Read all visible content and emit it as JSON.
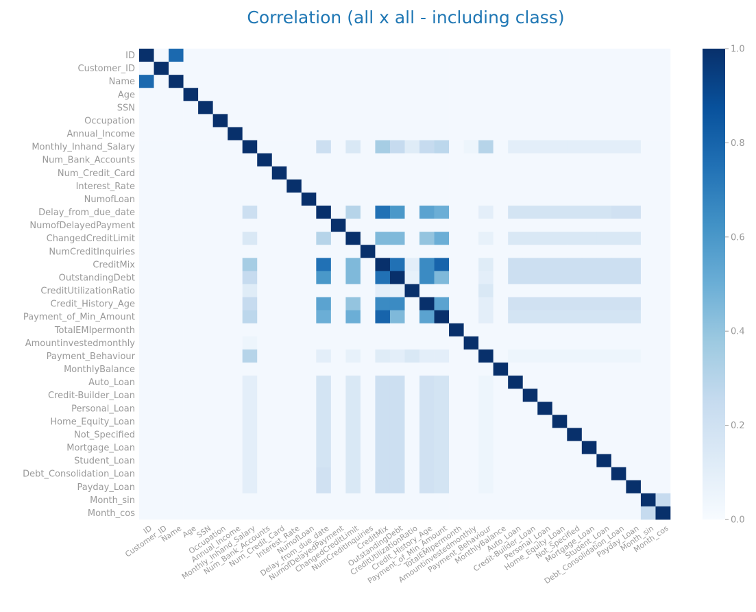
{
  "chart_data": {
    "type": "heatmap",
    "title": "Correlation (all x all - including class)",
    "labels": [
      "ID",
      "Customer_ID",
      "Name",
      "Age",
      "SSN",
      "Occupation",
      "Annual_Income",
      "Monthly_Inhand_Salary",
      "Num_Bank_Accounts",
      "Num_Credit_Card",
      "Interest_Rate",
      "NumofLoan",
      "Delay_from_due_date",
      "NumofDelayedPayment",
      "ChangedCreditLimit",
      "NumCreditInquiries",
      "CreditMix",
      "OutstandingDebt",
      "CreditUtilizationRatio",
      "Credit_History_Age",
      "Payment_of_Min_Amount",
      "TotalEMIpermonth",
      "Amountinvestedmonthly",
      "Payment_Behaviour",
      "MonthlyBalance",
      "Auto_Loan",
      "Credit-Builder_Loan",
      "Personal_Loan",
      "Home_Equity_Loan",
      "Not_Specified",
      "Mortgage_Loan",
      "Student_Loan",
      "Debt_Consolidation_Loan",
      "Payday_Loan",
      "Month_sin",
      "Month_cos"
    ],
    "zlim": [
      0.0,
      1.0
    ],
    "colorbar_ticks": [
      "0.0",
      "0.2",
      "0.4",
      "0.6",
      "0.8",
      "1.0"
    ],
    "colormap": [
      "#f7fbff",
      "#deebf7",
      "#c6dbef",
      "#9ecae1",
      "#6baed6",
      "#4292c6",
      "#2171b5",
      "#08519c",
      "#08306b"
    ],
    "cells": [
      [
        0,
        2,
        0.78
      ],
      [
        4,
        4,
        1
      ],
      [
        7,
        12,
        0.22
      ],
      [
        7,
        14,
        0.15
      ],
      [
        7,
        16,
        0.35
      ],
      [
        7,
        17,
        0.25
      ],
      [
        7,
        18,
        0.12
      ],
      [
        7,
        19,
        0.25
      ],
      [
        7,
        20,
        0.28
      ],
      [
        7,
        22,
        0.05
      ],
      [
        7,
        23,
        0.3
      ],
      [
        7,
        25,
        0.1
      ],
      [
        7,
        26,
        0.1
      ],
      [
        7,
        27,
        0.1
      ],
      [
        7,
        28,
        0.1
      ],
      [
        7,
        29,
        0.1
      ],
      [
        7,
        30,
        0.1
      ],
      [
        7,
        31,
        0.1
      ],
      [
        7,
        32,
        0.1
      ],
      [
        7,
        33,
        0.1
      ],
      [
        12,
        16,
        0.75
      ],
      [
        12,
        17,
        0.6
      ],
      [
        12,
        19,
        0.55
      ],
      [
        12,
        20,
        0.5
      ],
      [
        12,
        14,
        0.3
      ],
      [
        12,
        23,
        0.1
      ],
      [
        12,
        25,
        0.18
      ],
      [
        12,
        26,
        0.18
      ],
      [
        12,
        27,
        0.18
      ],
      [
        12,
        28,
        0.18
      ],
      [
        12,
        29,
        0.18
      ],
      [
        12,
        30,
        0.18
      ],
      [
        12,
        31,
        0.18
      ],
      [
        12,
        32,
        0.2
      ],
      [
        12,
        33,
        0.2
      ],
      [
        14,
        16,
        0.45
      ],
      [
        14,
        17,
        0.45
      ],
      [
        14,
        19,
        0.4
      ],
      [
        14,
        20,
        0.5
      ],
      [
        14,
        23,
        0.08
      ],
      [
        14,
        25,
        0.15
      ],
      [
        14,
        26,
        0.15
      ],
      [
        14,
        27,
        0.15
      ],
      [
        14,
        28,
        0.15
      ],
      [
        14,
        29,
        0.15
      ],
      [
        14,
        30,
        0.15
      ],
      [
        14,
        31,
        0.15
      ],
      [
        14,
        32,
        0.15
      ],
      [
        14,
        33,
        0.15
      ],
      [
        16,
        17,
        0.75
      ],
      [
        16,
        19,
        0.65
      ],
      [
        16,
        20,
        0.8
      ],
      [
        16,
        23,
        0.12
      ],
      [
        16,
        25,
        0.22
      ],
      [
        16,
        26,
        0.22
      ],
      [
        16,
        27,
        0.22
      ],
      [
        16,
        28,
        0.22
      ],
      [
        16,
        29,
        0.22
      ],
      [
        16,
        30,
        0.22
      ],
      [
        16,
        31,
        0.22
      ],
      [
        16,
        32,
        0.22
      ],
      [
        16,
        33,
        0.22
      ],
      [
        17,
        19,
        0.65
      ],
      [
        17,
        20,
        0.45
      ],
      [
        17,
        23,
        0.1
      ],
      [
        17,
        25,
        0.22
      ],
      [
        17,
        26,
        0.22
      ],
      [
        17,
        27,
        0.22
      ],
      [
        17,
        28,
        0.22
      ],
      [
        17,
        29,
        0.22
      ],
      [
        17,
        30,
        0.22
      ],
      [
        17,
        31,
        0.22
      ],
      [
        17,
        32,
        0.22
      ],
      [
        17,
        33,
        0.22
      ],
      [
        18,
        23,
        0.15
      ],
      [
        18,
        16,
        0.1
      ],
      [
        18,
        17,
        0.08
      ],
      [
        19,
        20,
        0.55
      ],
      [
        19,
        23,
        0.1
      ],
      [
        19,
        25,
        0.2
      ],
      [
        19,
        26,
        0.2
      ],
      [
        19,
        27,
        0.2
      ],
      [
        19,
        28,
        0.2
      ],
      [
        19,
        29,
        0.2
      ],
      [
        19,
        30,
        0.2
      ],
      [
        19,
        31,
        0.2
      ],
      [
        19,
        32,
        0.2
      ],
      [
        19,
        33,
        0.2
      ],
      [
        20,
        23,
        0.1
      ],
      [
        20,
        25,
        0.18
      ],
      [
        20,
        26,
        0.18
      ],
      [
        20,
        27,
        0.18
      ],
      [
        20,
        28,
        0.18
      ],
      [
        20,
        29,
        0.18
      ],
      [
        20,
        30,
        0.18
      ],
      [
        20,
        31,
        0.18
      ],
      [
        20,
        32,
        0.18
      ],
      [
        20,
        33,
        0.18
      ],
      [
        23,
        25,
        0.05
      ],
      [
        23,
        26,
        0.05
      ],
      [
        23,
        27,
        0.05
      ],
      [
        23,
        28,
        0.05
      ],
      [
        23,
        29,
        0.05
      ],
      [
        23,
        30,
        0.05
      ],
      [
        23,
        31,
        0.05
      ],
      [
        23,
        32,
        0.05
      ],
      [
        23,
        33,
        0.05
      ],
      [
        34,
        35,
        0.25
      ]
    ]
  }
}
